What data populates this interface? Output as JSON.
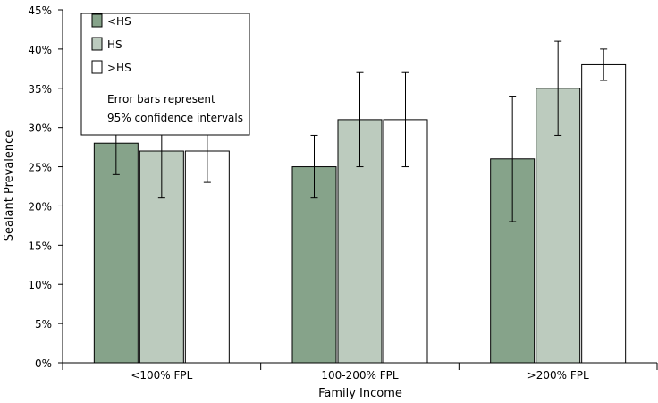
{
  "chart_data": {
    "type": "bar",
    "title": "",
    "xlabel": "Family Income",
    "ylabel": "Sealant Prevalence",
    "ylim": [
      0,
      45
    ],
    "yticks": [
      "0%",
      "5%",
      "10%",
      "15%",
      "20%",
      "25%",
      "30%",
      "35%",
      "40%",
      "45%"
    ],
    "categories": [
      "<100% FPL",
      "100-200% FPL",
      ">200% FPL"
    ],
    "series": [
      {
        "name": "<HS",
        "color": "#86a38a",
        "values": [
          28,
          25,
          26
        ],
        "ci_low": [
          24,
          21,
          18
        ],
        "ci_high": [
          32,
          29,
          34
        ]
      },
      {
        "name": "HS",
        "color": "#bccbbe",
        "values": [
          27,
          31,
          35
        ],
        "ci_low": [
          21,
          25,
          29
        ],
        "ci_high": [
          33,
          37,
          41
        ]
      },
      {
        "name": ">HS",
        "color": "#ffffff",
        "values": [
          27,
          31,
          38
        ],
        "ci_low": [
          23,
          25,
          36
        ],
        "ci_high": [
          31,
          37,
          40
        ]
      }
    ],
    "legend": {
      "placement": "top-left",
      "note_lines": [
        "Error bars represent",
        "95% confidence intervals"
      ]
    },
    "grid": false
  }
}
